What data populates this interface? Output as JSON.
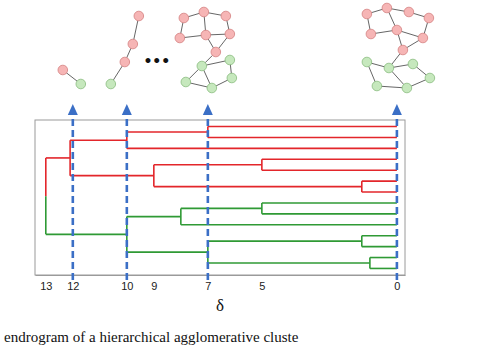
{
  "chart_data": {
    "type": "dendrogram",
    "x_label": "δ",
    "caption": "endrogram of a hierarchical agglomerative cluste",
    "xlim": [
      13.4,
      -0.3
    ],
    "xticks": [
      13,
      12,
      10,
      9,
      7,
      5,
      0
    ],
    "tick_labels": "x",
    "colors": [
      "#e3262b",
      "#2f9a35"
    ],
    "cuts": [
      12,
      10,
      7,
      0
    ],
    "ellipsis": "•••",
    "tree": {
      "height": 13,
      "children": [
        {
          "height": 12.1,
          "children": [
            {
              "height": 10,
              "children": [
                {
                  "height": 7,
                  "children": [
                    {
                      "height": 0
                    },
                    {
                      "height": 0
                    }
                  ]
                },
                {
                  "height": 0
                }
              ]
            },
            {
              "height": 9,
              "children": [
                {
                  "height": 5,
                  "children": [
                    {
                      "height": 0
                    },
                    {
                      "height": 0
                    }
                  ]
                },
                {
                  "height": 1.3,
                  "children": [
                    {
                      "height": 0
                    },
                    {
                      "height": 0
                    }
                  ]
                }
              ]
            }
          ]
        },
        {
          "height": 10,
          "children": [
            {
              "height": 8,
              "children": [
                {
                  "height": 5,
                  "children": [
                    {
                      "height": 0
                    },
                    {
                      "height": 0
                    }
                  ]
                },
                {
                  "height": 0
                }
              ]
            },
            {
              "height": 7,
              "children": [
                {
                  "height": 1.3,
                  "children": [
                    {
                      "height": 0
                    },
                    {
                      "height": 0
                    }
                  ]
                },
                {
                  "height": 1,
                  "children": [
                    {
                      "height": 0
                    },
                    {
                      "height": 0
                    }
                  ]
                }
              ]
            }
          ]
        }
      ]
    }
  }
}
